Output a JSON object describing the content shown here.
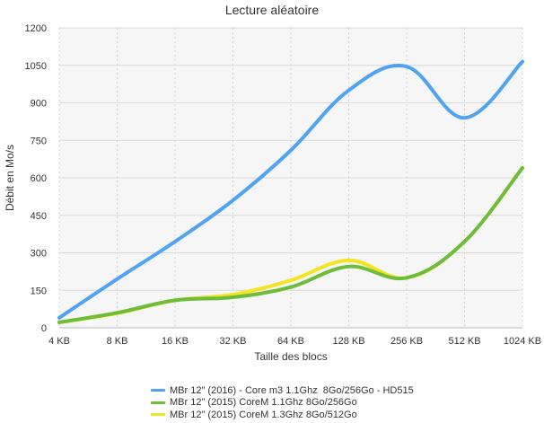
{
  "chart_data": {
    "type": "line",
    "title": "Lecture aléatoire",
    "xlabel": "Taille des blocs",
    "ylabel": "Débit en Mo/s",
    "categories": [
      "4 KB",
      "8 KB",
      "16 KB",
      "32 KB",
      "64 KB",
      "128 KB",
      "256 KB",
      "512 KB",
      "1024 KB"
    ],
    "ylim": [
      0,
      1200
    ],
    "yticks": [
      0,
      150,
      300,
      450,
      600,
      750,
      900,
      1050,
      1200
    ],
    "grid": true,
    "legend_position": "bottom",
    "series": [
      {
        "name": "MBr 12\" (2016) - Core m3 1.1Ghz  8Go/256Go - HD515",
        "color": "#4fa3f4",
        "values": [
          40,
          195,
          345,
          510,
          710,
          950,
          1045,
          840,
          1065
        ]
      },
      {
        "name": "MBr 12\" (2015) CoreM 1.1Ghz 8Go/256Go",
        "color": "#6dbd3a",
        "values": [
          22,
          60,
          110,
          122,
          163,
          245,
          200,
          345,
          640
        ]
      },
      {
        "name": "MBr 12\" (2015) CoreM 1.3Ghz 8Go/512Go",
        "color": "#f6e321",
        "values": [
          22,
          58,
          110,
          133,
          190,
          270,
          200,
          345,
          640
        ]
      }
    ]
  }
}
